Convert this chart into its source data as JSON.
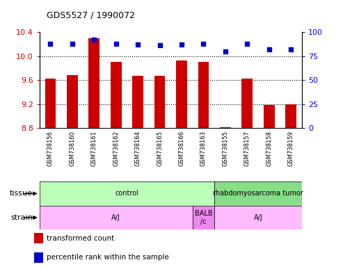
{
  "title": "GDS5527 / 1990072",
  "samples": [
    "GSM738156",
    "GSM738160",
    "GSM738161",
    "GSM738162",
    "GSM738164",
    "GSM738165",
    "GSM738166",
    "GSM738163",
    "GSM738155",
    "GSM738157",
    "GSM738158",
    "GSM738159"
  ],
  "bar_values": [
    9.62,
    9.68,
    10.3,
    9.9,
    9.67,
    9.67,
    9.93,
    9.9,
    8.82,
    9.62,
    9.18,
    9.2
  ],
  "dot_values": [
    88,
    88,
    92,
    88,
    87,
    86,
    87,
    88,
    80,
    88,
    82,
    82
  ],
  "bar_base": 8.8,
  "ylim_left": [
    8.8,
    10.4
  ],
  "ylim_right": [
    0,
    100
  ],
  "yticks_left": [
    8.8,
    9.2,
    9.6,
    10.0,
    10.4
  ],
  "yticks_right": [
    0,
    25,
    50,
    75,
    100
  ],
  "tissue_regions": [
    {
      "text": "control",
      "start": 0,
      "end": 7,
      "color": "#bbffbb"
    },
    {
      "text": "rhabdomyosarcoma tumor",
      "start": 8,
      "end": 11,
      "color": "#88dd88"
    }
  ],
  "strain_regions": [
    {
      "text": "A/J",
      "start": 0,
      "end": 6,
      "color": "#ffbbff"
    },
    {
      "text": "BALB\n/c",
      "start": 7,
      "end": 7,
      "color": "#ee88ee"
    },
    {
      "text": "A/J",
      "start": 8,
      "end": 11,
      "color": "#ffbbff"
    }
  ],
  "bar_color": "#cc0000",
  "dot_color": "#0000cc",
  "left_tick_color": "#cc0000",
  "right_tick_color": "#0000cc",
  "xlabels_bg": "#d8d8d8",
  "plot_bg": "#ffffff"
}
